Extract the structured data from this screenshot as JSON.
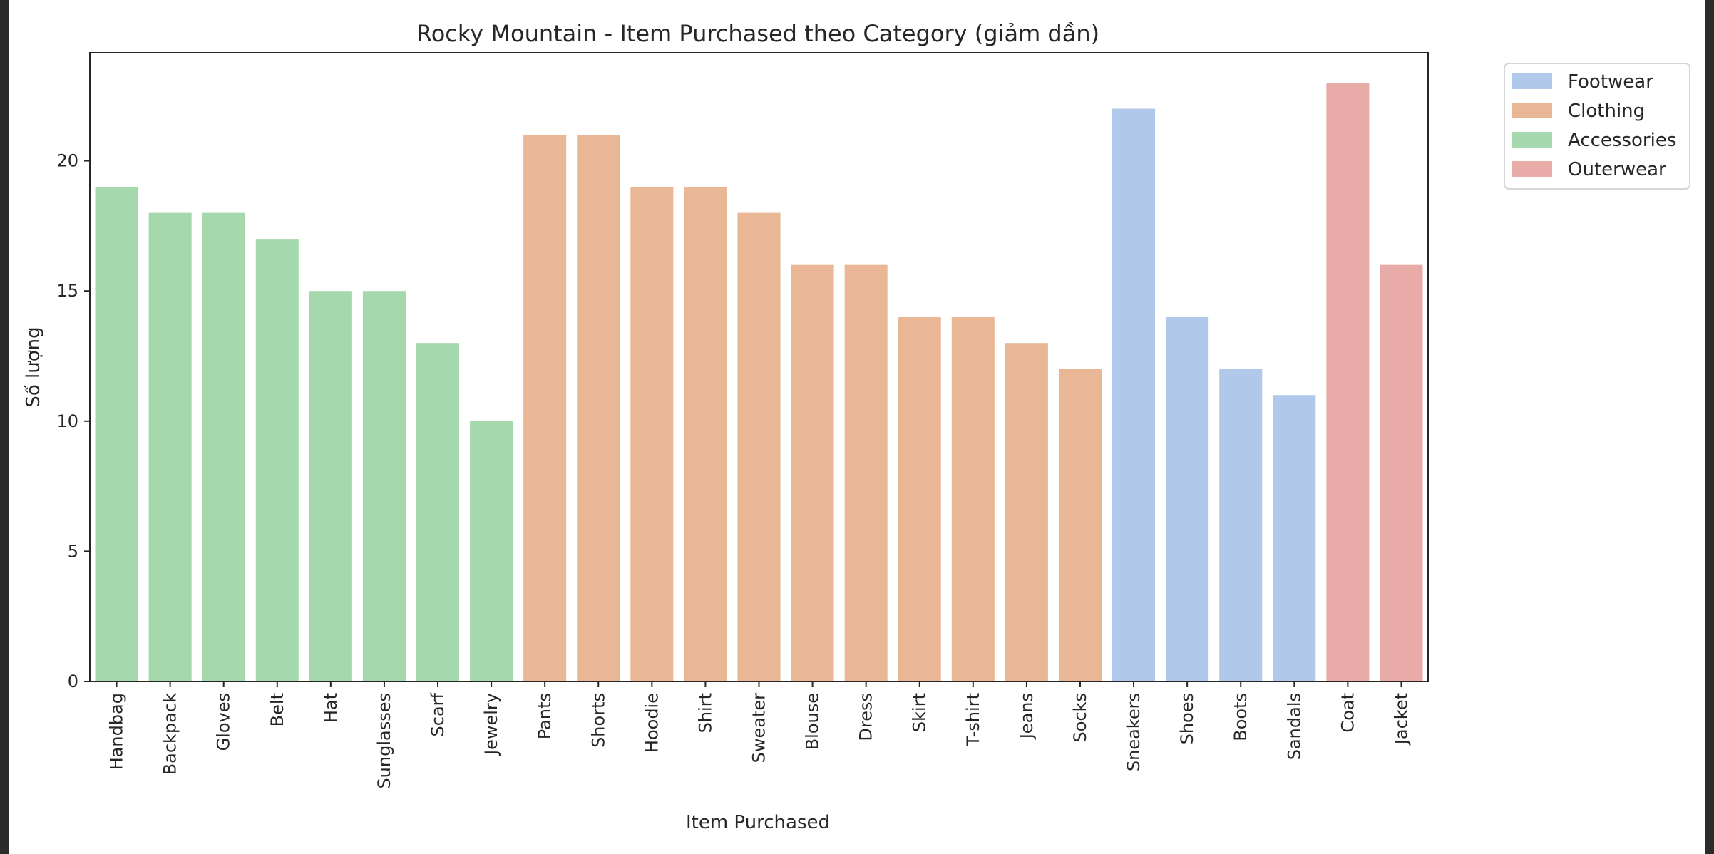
{
  "chart_data": {
    "type": "bar",
    "title": "Rocky Mountain - Item Purchased theo Category (giảm dần)",
    "xlabel": "Item Purchased",
    "ylabel": "Số lượng",
    "ylim": [
      0,
      24.15
    ],
    "yticks": [
      0,
      5,
      10,
      15,
      20
    ],
    "grid": false,
    "legend_position": "outside-top-right",
    "categories": [
      "Handbag",
      "Backpack",
      "Gloves",
      "Belt",
      "Hat",
      "Sunglasses",
      "Scarf",
      "Jewelry",
      "Pants",
      "Shorts",
      "Hoodie",
      "Shirt",
      "Sweater",
      "Blouse",
      "Dress",
      "Skirt",
      "T-shirt",
      "Jeans",
      "Socks",
      "Sneakers",
      "Shoes",
      "Boots",
      "Sandals",
      "Coat",
      "Jacket"
    ],
    "values": [
      19,
      18,
      18,
      17,
      15,
      15,
      13,
      10,
      21,
      21,
      19,
      19,
      18,
      16,
      16,
      14,
      14,
      13,
      12,
      22,
      14,
      12,
      11,
      23,
      16
    ],
    "bar_groups": [
      "Accessories",
      "Accessories",
      "Accessories",
      "Accessories",
      "Accessories",
      "Accessories",
      "Accessories",
      "Accessories",
      "Clothing",
      "Clothing",
      "Clothing",
      "Clothing",
      "Clothing",
      "Clothing",
      "Clothing",
      "Clothing",
      "Clothing",
      "Clothing",
      "Clothing",
      "Footwear",
      "Footwear",
      "Footwear",
      "Footwear",
      "Outerwear",
      "Outerwear"
    ],
    "legend": [
      {
        "name": "Footwear",
        "color": "#b0c8e9"
      },
      {
        "name": "Clothing",
        "color": "#e9b796"
      },
      {
        "name": "Accessories",
        "color": "#a6d8ad"
      },
      {
        "name": "Outerwear",
        "color": "#e8aba7"
      }
    ]
  }
}
